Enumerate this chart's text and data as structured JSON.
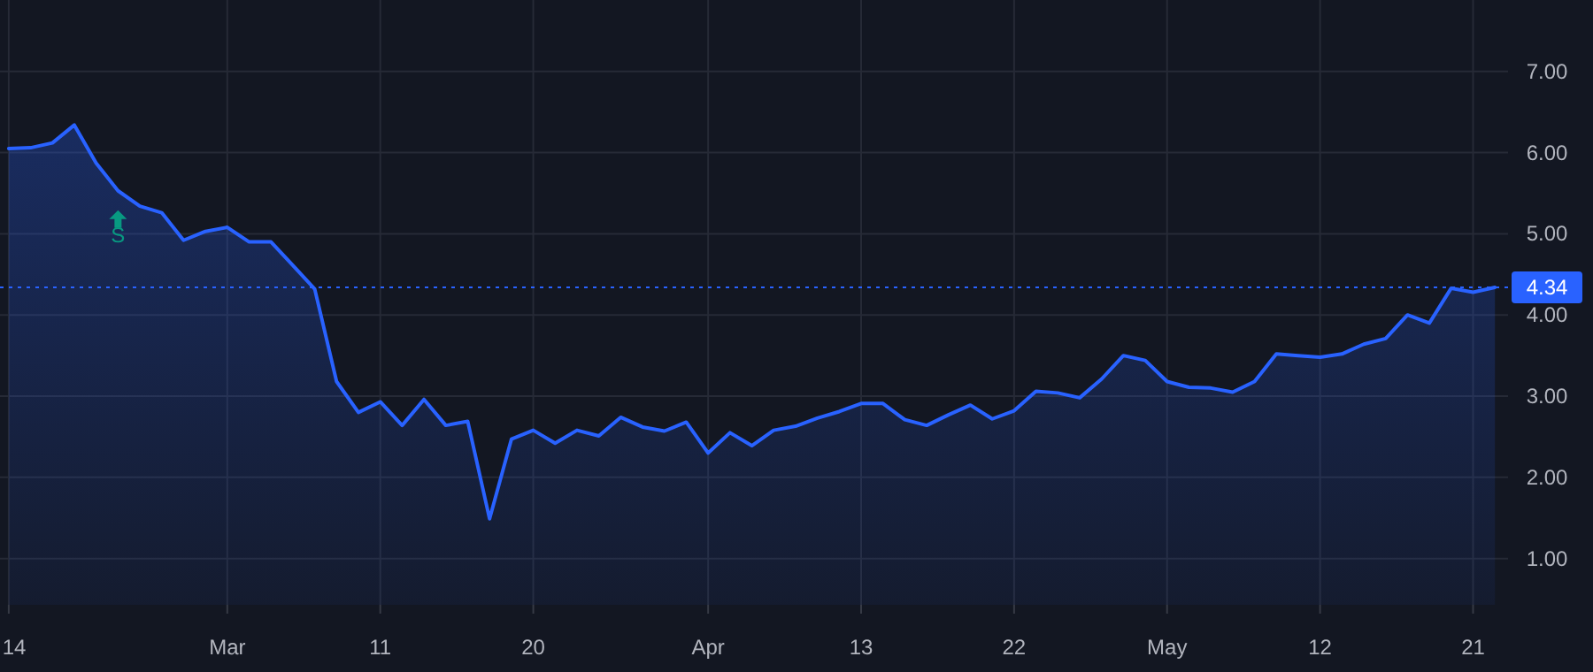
{
  "chart_data": {
    "type": "area",
    "categories": [
      "14",
      null,
      null,
      null,
      null,
      null,
      null,
      null,
      null,
      null,
      "Mar",
      null,
      null,
      null,
      null,
      null,
      null,
      "11",
      null,
      null,
      null,
      null,
      null,
      null,
      "20",
      null,
      null,
      null,
      null,
      null,
      null,
      null,
      "Apr",
      null,
      null,
      null,
      null,
      null,
      null,
      "13",
      null,
      null,
      null,
      null,
      null,
      null,
      "22",
      null,
      null,
      null,
      null,
      null,
      null,
      "May",
      null,
      null,
      null,
      null,
      null,
      null,
      "12",
      null,
      null,
      null,
      null,
      null,
      null,
      "21",
      null
    ],
    "series": [
      {
        "color": "#2962ff",
        "values": [
          6.05,
          6.06,
          6.12,
          6.34,
          5.87,
          5.53,
          5.34,
          5.26,
          4.92,
          5.03,
          5.08,
          4.9,
          4.9,
          4.61,
          4.32,
          3.18,
          2.8,
          2.93,
          2.64,
          2.96,
          2.64,
          2.69,
          1.49,
          2.47,
          2.58,
          2.42,
          2.58,
          2.51,
          2.74,
          2.62,
          2.57,
          2.68,
          2.3,
          2.55,
          2.39,
          2.58,
          2.63,
          2.73,
          2.81,
          2.91,
          2.91,
          2.71,
          2.64,
          2.77,
          2.89,
          2.72,
          2.82,
          3.06,
          3.04,
          2.98,
          3.21,
          3.5,
          3.44,
          3.18,
          3.11,
          3.1,
          3.05,
          3.18,
          3.52,
          3.5,
          3.48,
          3.52,
          3.64,
          3.71,
          4.0,
          3.9,
          4.33,
          4.28,
          4.34
        ]
      }
    ],
    "ylim": [
      0.43,
      7.88
    ],
    "yticks": [
      {
        "value": 1,
        "label": "1.00"
      },
      {
        "value": 2,
        "label": "2.00"
      },
      {
        "value": 3,
        "label": "3.00"
      },
      {
        "value": 4,
        "label": "4.00"
      },
      {
        "value": 5,
        "label": "5.00"
      },
      {
        "value": 6,
        "label": "6.00"
      },
      {
        "value": 7,
        "label": "7.00"
      }
    ],
    "grid": true,
    "ref_lines": [
      {
        "axis": "y",
        "value": 4.34,
        "label": "4.34",
        "color": "#2962ff",
        "line_style": "dotted"
      }
    ],
    "annotations": [
      "S"
    ]
  }
}
